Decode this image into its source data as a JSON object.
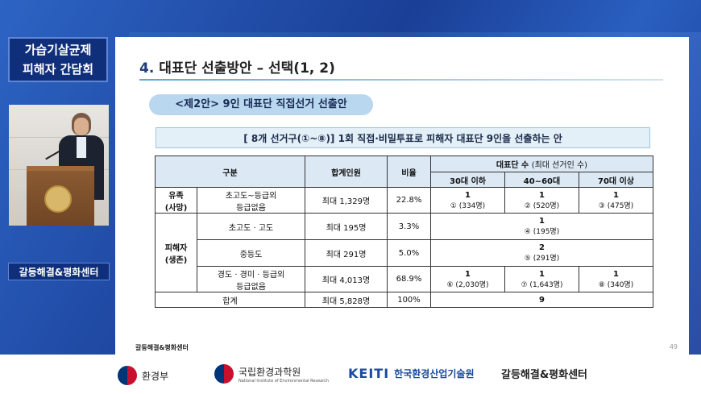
{
  "event_title": [
    "가습기살균제",
    "피해자 간담회"
  ],
  "org_label": "갈등해결&평화센터",
  "slide": {
    "heading_num": "4.",
    "heading_text": "대표단 선출방안 – 선택(1, 2)",
    "option_pill": "<제2안> 9인 대표단 직접선거 선출안",
    "banner": "[ 8개 선거구(①~⑧)]   1회 직접·비밀투표로 피해자 대표단 9인을 선출하는 안",
    "table": {
      "h_category": "구분",
      "h_total": "합계인원",
      "h_ratio": "비율",
      "h_rep": "대표단 수",
      "h_rep_note": "(최대 선거인 수)",
      "h_age1": "30대 이하",
      "h_age2": "40~60대",
      "h_age3": "70대 이상",
      "g1": "유족\n(사망)",
      "g2": "피해자\n(생존)",
      "rows": [
        {
          "sub": "초고도~등급외\n등급없음",
          "total": "최대 1,329명",
          "ratio": "22.8%",
          "c1v": "1",
          "c1s": "① (334명)",
          "c2v": "1",
          "c2s": "② (520명)",
          "c3v": "1",
          "c3s": "③ (475명)"
        },
        {
          "sub": "초고도 · 고도",
          "total": "최대 195명",
          "ratio": "3.3%",
          "mv": "1",
          "ms": "④ (195명)"
        },
        {
          "sub": "중등도",
          "total": "최대 291명",
          "ratio": "5.0%",
          "mv": "2",
          "ms": "⑤ (291명)"
        },
        {
          "sub": "경도 · 경미 · 등급외\n등급없음",
          "total": "최대 4,013명",
          "ratio": "68.9%",
          "c1v": "1",
          "c1s": "⑥ (2,030명)",
          "c2v": "1",
          "c2s": "⑦ (1,643명)",
          "c3v": "1",
          "c3s": "⑧ (340명)"
        }
      ],
      "sum_label": "합계",
      "sum_total": "최대 5,828명",
      "sum_ratio": "100%",
      "sum_rep": "9"
    },
    "footer": "갈등해결&평화센터",
    "page": "49"
  },
  "bottom_logos": {
    "l1": "환경부",
    "l2": "국립환경과학원",
    "l2_en": "National Institute of Environmental Research",
    "l3_mark": "KEITI",
    "l3": "한국환경산업기술원",
    "l4": "갈등해결&평화센터"
  },
  "colors": {
    "frame_blue": "#1f4fa8",
    "label_navy": "#0f2f7a",
    "pill": "#b9d7ee",
    "header_cell": "#dce9f5"
  }
}
